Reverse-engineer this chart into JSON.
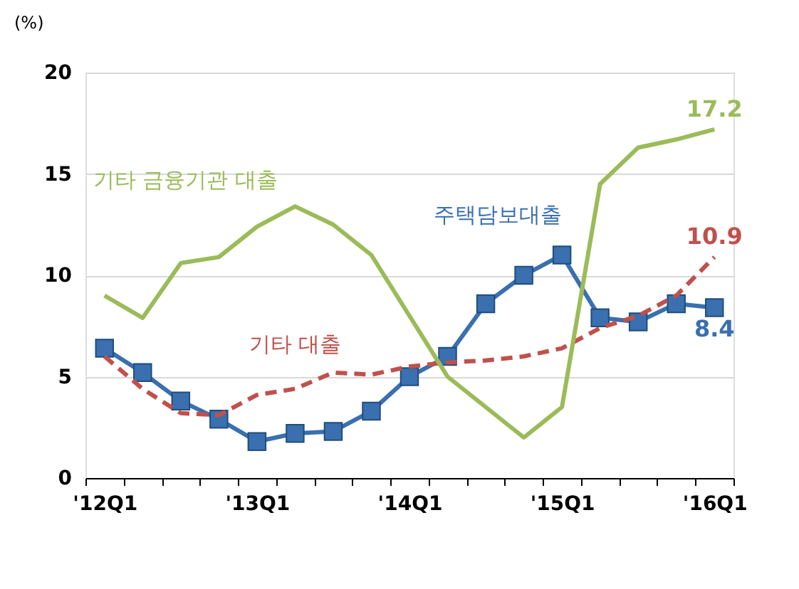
{
  "chart_data": {
    "type": "line",
    "ylabel": "(%)",
    "categories": [
      "'12Q1",
      null,
      null,
      null,
      "'13Q1",
      null,
      null,
      null,
      "'14Q1",
      null,
      null,
      null,
      "'15Q1",
      null,
      null,
      null,
      "'16Q1"
    ],
    "series": [
      {
        "name": "주택담보대출",
        "color": "#3a6fb0",
        "marker": "square",
        "line_style": "solid",
        "values": [
          6.4,
          5.2,
          3.8,
          2.9,
          1.8,
          2.2,
          2.3,
          3.3,
          5.0,
          6.0,
          8.6,
          10.0,
          11.0,
          7.9,
          7.7,
          8.6,
          8.4
        ],
        "value_labels": [
          null,
          null,
          null,
          null,
          null,
          null,
          null,
          null,
          null,
          null,
          null,
          null,
          null,
          null,
          null,
          null,
          "8.4"
        ]
      },
      {
        "name": "기타 대출",
        "color": "#c0504d",
        "marker": "none",
        "line_style": "dashed",
        "values": [
          6.0,
          4.4,
          3.2,
          3.1,
          4.1,
          4.4,
          5.2,
          5.1,
          5.5,
          5.7,
          5.8,
          6.0,
          6.4,
          7.4,
          8.0,
          9.0,
          10.9
        ],
        "value_labels": [
          null,
          null,
          null,
          null,
          null,
          null,
          null,
          null,
          null,
          null,
          null,
          null,
          null,
          null,
          null,
          null,
          "10.9"
        ]
      },
      {
        "name": "기타 금융기관 대출",
        "color": "#9bbb59",
        "marker": "none",
        "line_style": "solid",
        "values": [
          9.0,
          7.9,
          10.6,
          10.9,
          12.4,
          13.4,
          12.5,
          11.0,
          8.0,
          5.0,
          3.5,
          2.0,
          3.5,
          14.5,
          16.3,
          16.7,
          17.2
        ],
        "value_labels": [
          null,
          null,
          null,
          null,
          null,
          null,
          null,
          null,
          null,
          null,
          null,
          null,
          null,
          null,
          null,
          null,
          "17.2"
        ]
      }
    ],
    "ylim": [
      0,
      20
    ],
    "yticks": [
      0,
      5,
      10,
      15,
      20
    ],
    "grid": "y"
  }
}
